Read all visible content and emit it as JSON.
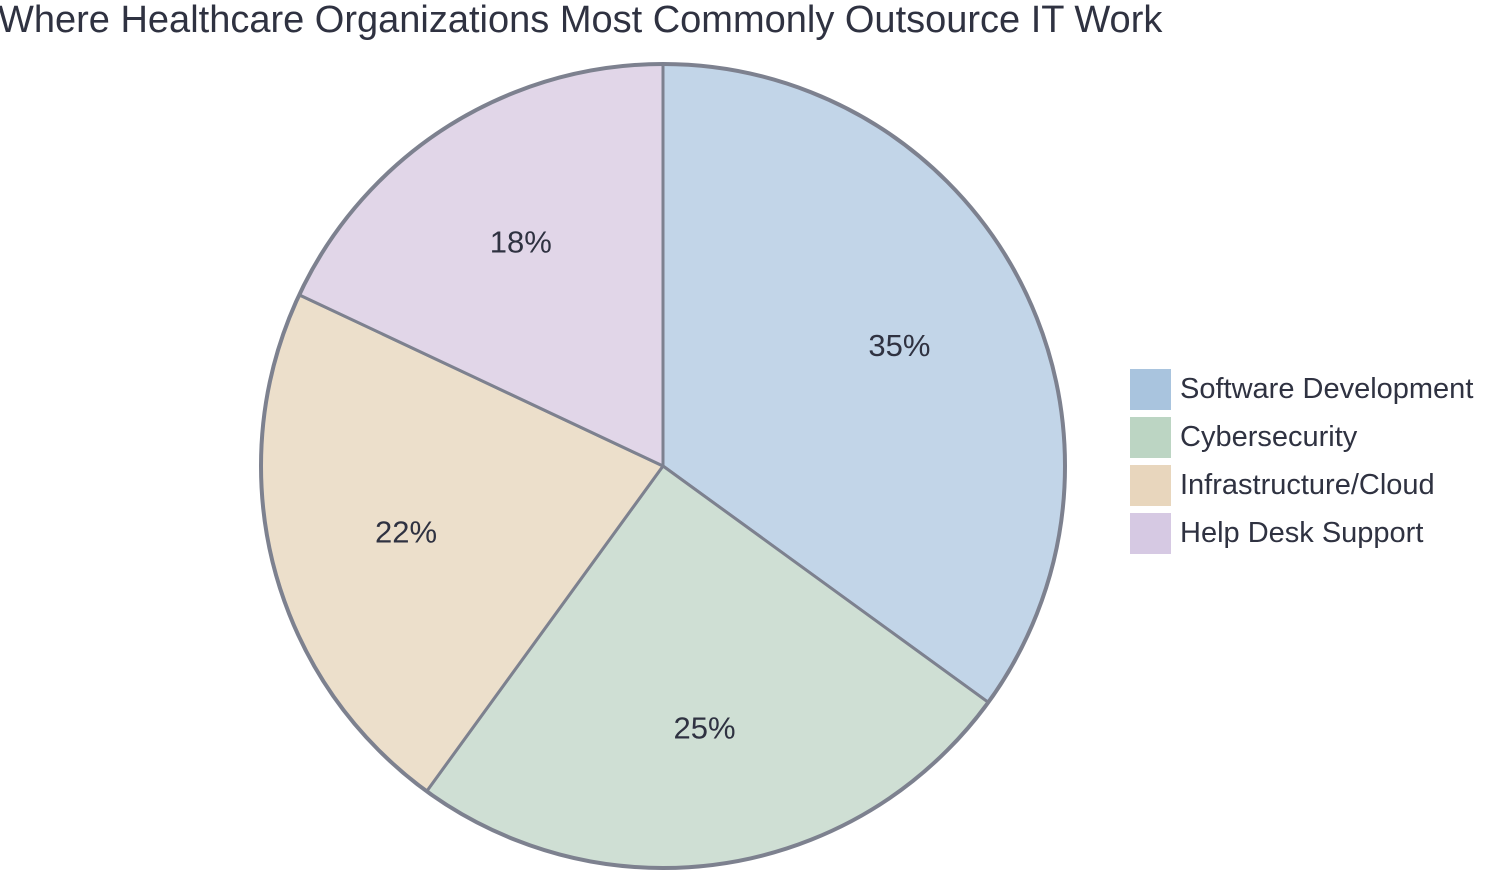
{
  "chart_data": {
    "type": "pie",
    "title": "Where Healthcare Organizations Most Commonly Outsource IT Work",
    "start_angle_deg": 0,
    "direction": "clockwise",
    "slices": [
      {
        "label": "Software Development",
        "value": 35,
        "display": "35%",
        "color": "#c2d5e8",
        "swatch": "#a9c4de"
      },
      {
        "label": "Cybersecurity",
        "value": 25,
        "display": "25%",
        "color": "#cfdfd4",
        "swatch": "#bcd5c3"
      },
      {
        "label": "Infrastructure/Cloud",
        "value": 22,
        "display": "22%",
        "color": "#ecdfcb",
        "swatch": "#e8d6bd"
      },
      {
        "label": "Help Desk Support",
        "value": 18,
        "display": "18%",
        "color": "#e1d6e8",
        "swatch": "#d6c9e3"
      }
    ],
    "legend_position": "right"
  }
}
